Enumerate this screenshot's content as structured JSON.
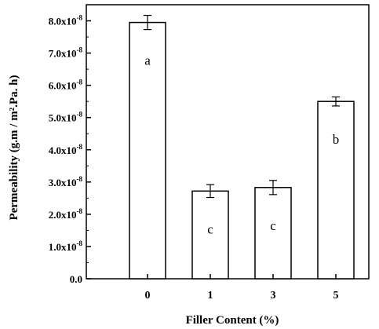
{
  "chart_data": {
    "type": "bar",
    "title": "",
    "xlabel": "Filler Content (%)",
    "ylabel": "Permeability (g.m / m².Pa. h)",
    "categories": [
      "0",
      "1",
      "3",
      "5"
    ],
    "values": [
      7.95e-08,
      2.72e-08,
      2.83e-08,
      5.5e-08
    ],
    "errors": [
      2.2e-09,
      2e-09,
      2.2e-09,
      1.4e-09
    ],
    "annotations": [
      "a",
      "c",
      "c",
      "b"
    ],
    "ylim": [
      0,
      8.5e-08
    ],
    "grid": false,
    "legend": "none",
    "y_ticks": [
      {
        "value": 0,
        "label": "0.0",
        "exp": ""
      },
      {
        "value": 1e-08,
        "label": "1.0x10",
        "exp": "-8"
      },
      {
        "value": 2e-08,
        "label": "2.0x10",
        "exp": "-8"
      },
      {
        "value": 3e-08,
        "label": "3.0x10",
        "exp": "-8"
      },
      {
        "value": 4e-08,
        "label": "4.0x10",
        "exp": "-8"
      },
      {
        "value": 5e-08,
        "label": "5.0x10",
        "exp": "-8"
      },
      {
        "value": 6e-08,
        "label": "6.0x10",
        "exp": "-8"
      },
      {
        "value": 7e-08,
        "label": "7.0x10",
        "exp": "-8"
      },
      {
        "value": 8e-08,
        "label": "8.0x10",
        "exp": "-8"
      }
    ],
    "colors": {
      "bar_fill": "#ffffff",
      "bar_stroke": "#000000",
      "axis": "#000000"
    }
  }
}
